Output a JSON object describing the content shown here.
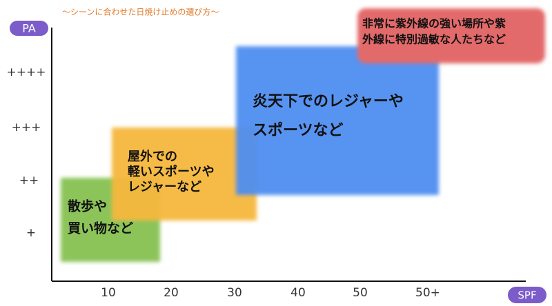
{
  "title": "〜シーンに合わせた日焼け止めの選び方〜",
  "y_axis": {
    "label": "PA",
    "ticks": [
      "++++",
      "+++",
      "++",
      "+"
    ]
  },
  "x_axis": {
    "label": "SPF",
    "ticks": [
      "10",
      "20",
      "30",
      "40",
      "50",
      "50+"
    ]
  },
  "zones": [
    {
      "lines": [
        "散歩や",
        "買い物など"
      ]
    },
    {
      "lines": [
        "屋外での",
        "軽いスポーツや",
        "レジャーなど"
      ]
    },
    {
      "lines": [
        "炎天下でのレジャーや",
        "スポーツなど"
      ]
    },
    {
      "lines": [
        "非常に紫外線の強い場所や紫",
        "外線に特別過敏な人たちなど"
      ]
    }
  ]
}
